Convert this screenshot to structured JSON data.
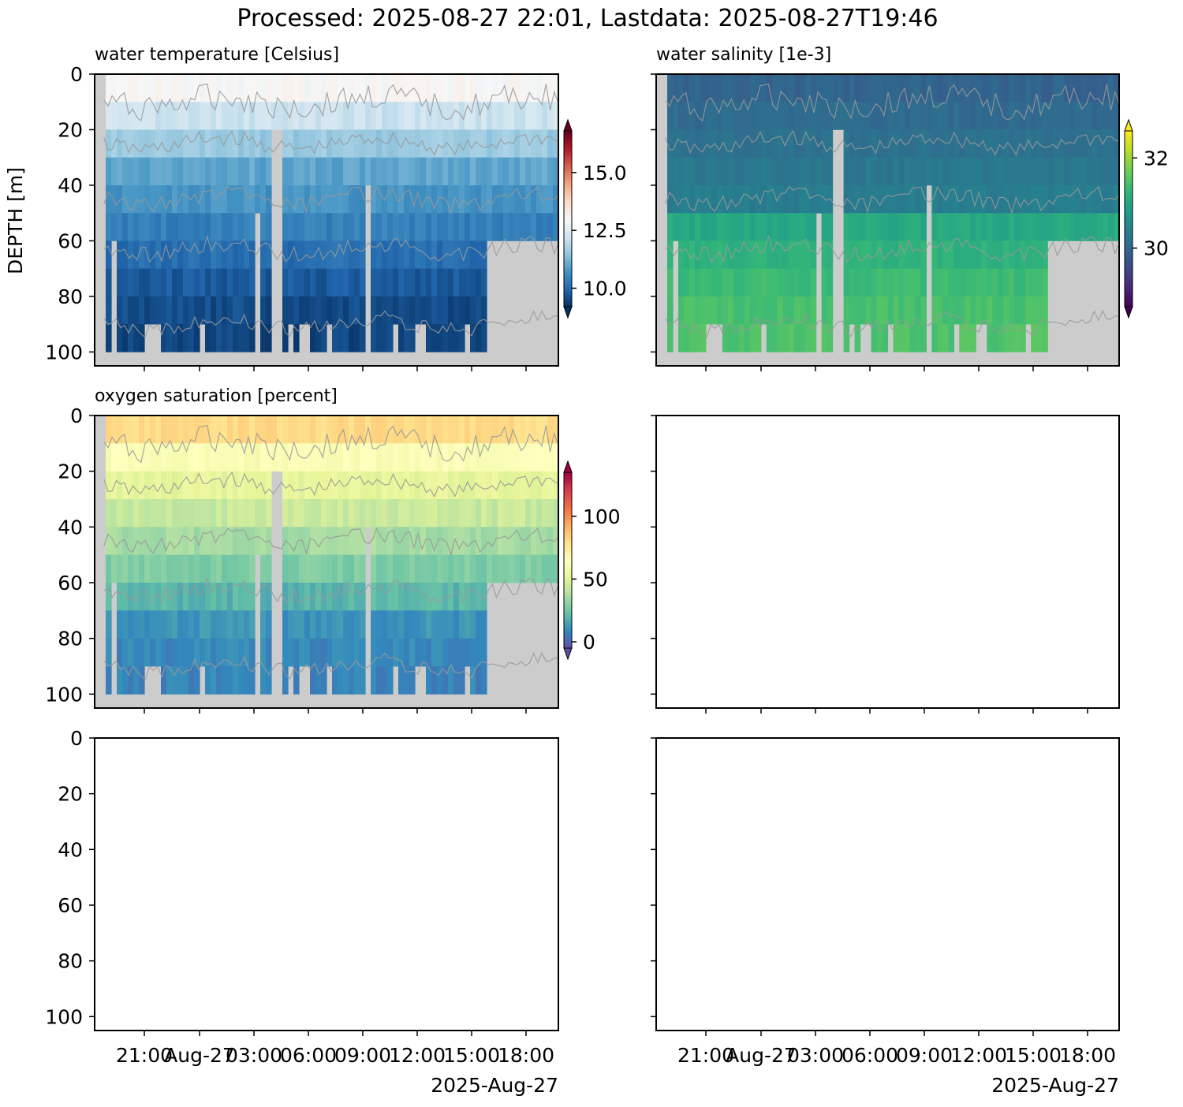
{
  "figure": {
    "title": "Processed: 2025-08-27 22:01, Lastdata: 2025-08-27T19:46",
    "ylabel": "DEPTH [m]",
    "y_ticks": [
      "0",
      "20",
      "40",
      "60",
      "80",
      "100"
    ],
    "x_ticks": [
      "21:00",
      "Aug-27",
      "03:00",
      "06:00",
      "09:00",
      "12:00",
      "15:00",
      "18:00"
    ],
    "x_offset_label": "2025-Aug-27",
    "missing_color": "#cccccc",
    "contour_color": "#999999"
  },
  "chart_data": [
    {
      "type": "heatmap",
      "panel": "top-left",
      "title": "water temperature [Celsius]",
      "colormap": "RdBu_r",
      "xlim": [
        "2025-08-26T18:20",
        "2025-08-27T19:46"
      ],
      "ylim": [
        105,
        0
      ],
      "depth_bins": [
        0,
        10,
        20,
        30,
        40,
        50,
        60,
        70,
        80,
        90,
        100
      ],
      "values_by_depth_bin": [
        13.0,
        12.2,
        11.6,
        11.0,
        10.7,
        10.4,
        10.1,
        9.8,
        9.6,
        9.5
      ],
      "colorbar": {
        "ticks": [
          "10.0",
          "12.5",
          "15.0"
        ],
        "range": [
          9.2,
          16.8
        ],
        "extend": "both"
      },
      "contours": true
    },
    {
      "type": "heatmap",
      "panel": "top-right",
      "title": "water salinity [1e-3]",
      "colormap": "viridis",
      "xlim": [
        "2025-08-26T18:20",
        "2025-08-27T19:46"
      ],
      "ylim": [
        105,
        0
      ],
      "depth_bins": [
        0,
        10,
        20,
        30,
        40,
        50,
        60,
        70,
        80,
        90,
        100
      ],
      "values_by_depth_bin": [
        29.95,
        30.05,
        30.15,
        30.25,
        30.35,
        31.05,
        31.2,
        31.35,
        31.45,
        31.5
      ],
      "colorbar": {
        "ticks": [
          "30",
          "32"
        ],
        "range": [
          28.7,
          32.6
        ],
        "extend": "both"
      },
      "contours": true
    },
    {
      "type": "heatmap",
      "panel": "middle-left",
      "title": "oxygen saturation [percent]",
      "colormap": "Spectral_r",
      "xlim": [
        "2025-08-26T18:20",
        "2025-08-27T19:46"
      ],
      "ylim": [
        105,
        0
      ],
      "depth_bins": [
        0,
        10,
        20,
        30,
        40,
        50,
        60,
        70,
        80,
        90,
        100
      ],
      "values_by_depth_bin": [
        80,
        62,
        52,
        44,
        36,
        28,
        20,
        12,
        9,
        8
      ],
      "colorbar": {
        "ticks": [
          "0",
          "50",
          "100"
        ],
        "range": [
          -5,
          135
        ],
        "extend": "both"
      },
      "contours": true
    },
    {
      "type": "heatmap",
      "panel": "middle-right",
      "title": "",
      "empty": true
    },
    {
      "type": "heatmap",
      "panel": "bottom-left",
      "title": "",
      "empty": true
    },
    {
      "type": "heatmap",
      "panel": "bottom-right",
      "title": "",
      "empty": true
    }
  ]
}
